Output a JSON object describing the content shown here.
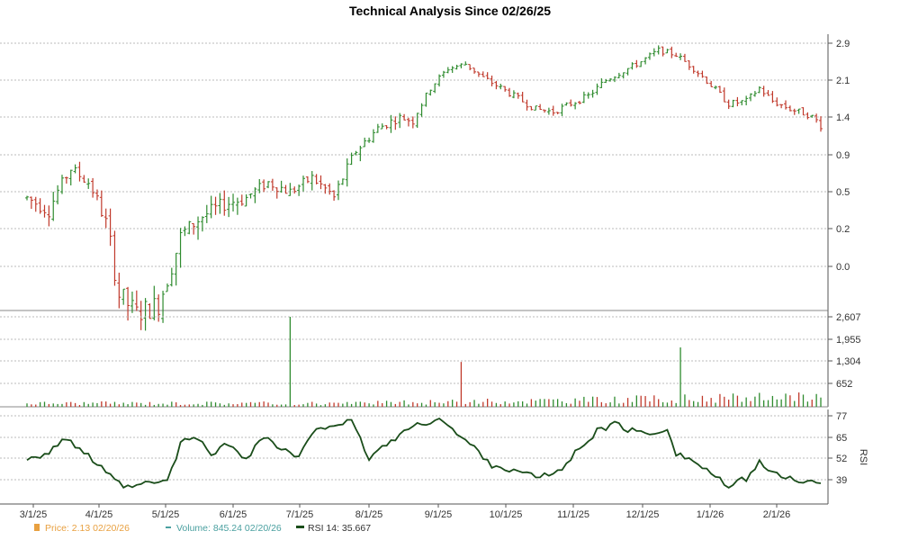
{
  "title": "Technical Analysis Since 02/26/25",
  "colors": {
    "up": "#2e8b2e",
    "down": "#c0392b",
    "rsi": "#1a4d1a",
    "price_legend": "#e8a040",
    "volume_legend": "#4aa0a0",
    "grid": "#bbbbbb"
  },
  "legend": [
    {
      "icon": "price-swatch",
      "text": "Price: 2.13  02/20/26"
    },
    {
      "icon": "volume-swatch",
      "text": "Volume: 845.24  02/20/26"
    },
    {
      "icon": "rsi-swatch",
      "text": "RSI 14: 35.667"
    }
  ],
  "chart_data": [
    {
      "type": "candlestick",
      "title": "Technical Analysis Since 02/26/25",
      "ylim": [
        -0.35,
        2.95
      ],
      "yticks": [
        "2.9",
        "2.1",
        "1.4",
        "0.9",
        "0.5",
        "0.2",
        "0.0"
      ],
      "xticks": [
        "3/1/25",
        "4/1/25",
        "5/1/25",
        "6/1/25",
        "7/1/25",
        "8/1/25",
        "9/1/25",
        "10/1/25",
        "11/1/25",
        "12/1/25",
        "1/1/26",
        "2/1/26"
      ],
      "grid": true,
      "anchors": [
        {
          "x": 0,
          "y": 0.45
        },
        {
          "x": 5,
          "y": 0.35
        },
        {
          "x": 10,
          "y": 0.75
        },
        {
          "x": 14,
          "y": 0.6
        },
        {
          "x": 18,
          "y": 0.25
        },
        {
          "x": 21,
          "y": -0.15
        },
        {
          "x": 25,
          "y": -0.25
        },
        {
          "x": 30,
          "y": -0.2
        },
        {
          "x": 35,
          "y": 0.15
        },
        {
          "x": 40,
          "y": 0.3
        },
        {
          "x": 45,
          "y": 0.4
        },
        {
          "x": 50,
          "y": 0.45
        },
        {
          "x": 55,
          "y": 0.6
        },
        {
          "x": 60,
          "y": 0.5
        },
        {
          "x": 65,
          "y": 0.65
        },
        {
          "x": 70,
          "y": 0.45
        },
        {
          "x": 75,
          "y": 0.95
        },
        {
          "x": 80,
          "y": 1.25
        },
        {
          "x": 85,
          "y": 1.4
        },
        {
          "x": 88,
          "y": 1.35
        },
        {
          "x": 92,
          "y": 1.95
        },
        {
          "x": 96,
          "y": 2.35
        },
        {
          "x": 100,
          "y": 2.45
        },
        {
          "x": 104,
          "y": 2.15
        },
        {
          "x": 108,
          "y": 1.95
        },
        {
          "x": 112,
          "y": 1.75
        },
        {
          "x": 116,
          "y": 1.55
        },
        {
          "x": 120,
          "y": 1.5
        },
        {
          "x": 124,
          "y": 1.65
        },
        {
          "x": 128,
          "y": 1.8
        },
        {
          "x": 132,
          "y": 2.1
        },
        {
          "x": 136,
          "y": 2.3
        },
        {
          "x": 140,
          "y": 2.5
        },
        {
          "x": 144,
          "y": 2.75
        },
        {
          "x": 148,
          "y": 2.65
        },
        {
          "x": 152,
          "y": 2.35
        },
        {
          "x": 156,
          "y": 2.0
        },
        {
          "x": 160,
          "y": 1.65
        },
        {
          "x": 164,
          "y": 1.7
        },
        {
          "x": 167,
          "y": 1.95
        },
        {
          "x": 170,
          "y": 1.7
        },
        {
          "x": 174,
          "y": 1.55
        },
        {
          "x": 178,
          "y": 1.45
        },
        {
          "x": 181,
          "y": 1.3
        }
      ],
      "sessions": 182,
      "last_price": 2.13
    },
    {
      "type": "bar",
      "series": "Volume",
      "ylim": [
        0,
        2607
      ],
      "yticks": [
        "2,607",
        "1,955",
        "1,304",
        "652"
      ],
      "baseline": 80,
      "spikes": [
        {
          "x": 60,
          "value": 2607
        },
        {
          "x": 99,
          "value": 1300
        },
        {
          "x": 149,
          "value": 1720
        }
      ],
      "last_value": 845.24
    },
    {
      "type": "line",
      "series": "RSI 14",
      "ylabel": "RSI",
      "ylim": [
        30,
        78
      ],
      "yticks": [
        "77",
        "65",
        "52",
        "39"
      ],
      "anchors": [
        {
          "x": 0,
          "y": 52
        },
        {
          "x": 5,
          "y": 55
        },
        {
          "x": 8,
          "y": 63
        },
        {
          "x": 12,
          "y": 58
        },
        {
          "x": 16,
          "y": 48
        },
        {
          "x": 20,
          "y": 38
        },
        {
          "x": 23,
          "y": 34
        },
        {
          "x": 28,
          "y": 37
        },
        {
          "x": 32,
          "y": 38
        },
        {
          "x": 35,
          "y": 60
        },
        {
          "x": 38,
          "y": 65
        },
        {
          "x": 42,
          "y": 55
        },
        {
          "x": 46,
          "y": 60
        },
        {
          "x": 50,
          "y": 52
        },
        {
          "x": 54,
          "y": 65
        },
        {
          "x": 58,
          "y": 57
        },
        {
          "x": 62,
          "y": 52
        },
        {
          "x": 66,
          "y": 70
        },
        {
          "x": 70,
          "y": 72
        },
        {
          "x": 74,
          "y": 73
        },
        {
          "x": 78,
          "y": 52
        },
        {
          "x": 82,
          "y": 60
        },
        {
          "x": 86,
          "y": 68
        },
        {
          "x": 90,
          "y": 72
        },
        {
          "x": 94,
          "y": 76
        },
        {
          "x": 98,
          "y": 66
        },
        {
          "x": 102,
          "y": 58
        },
        {
          "x": 106,
          "y": 48
        },
        {
          "x": 110,
          "y": 45
        },
        {
          "x": 114,
          "y": 42
        },
        {
          "x": 118,
          "y": 41
        },
        {
          "x": 122,
          "y": 45
        },
        {
          "x": 126,
          "y": 58
        },
        {
          "x": 130,
          "y": 68
        },
        {
          "x": 134,
          "y": 72
        },
        {
          "x": 138,
          "y": 68
        },
        {
          "x": 142,
          "y": 66
        },
        {
          "x": 146,
          "y": 70
        },
        {
          "x": 148,
          "y": 55
        },
        {
          "x": 152,
          "y": 50
        },
        {
          "x": 156,
          "y": 43
        },
        {
          "x": 160,
          "y": 34
        },
        {
          "x": 164,
          "y": 40
        },
        {
          "x": 167,
          "y": 50
        },
        {
          "x": 170,
          "y": 42
        },
        {
          "x": 174,
          "y": 40
        },
        {
          "x": 178,
          "y": 38
        },
        {
          "x": 181,
          "y": 36
        }
      ],
      "last_value": 35.667
    }
  ]
}
